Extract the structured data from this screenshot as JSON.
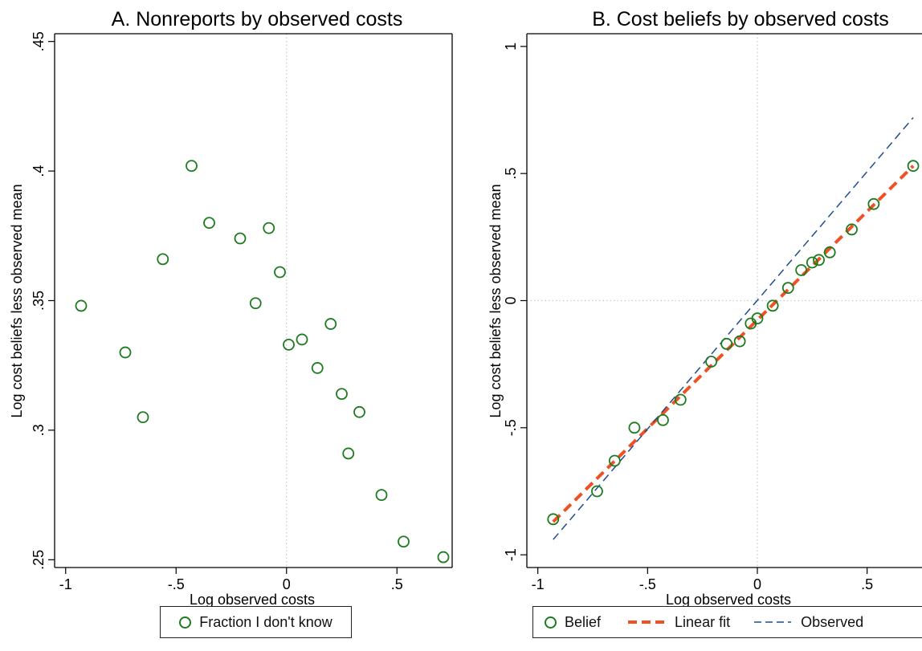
{
  "colors": {
    "marker": "#1e7a1e",
    "linear_fit": "#f05023",
    "observed": "#1f4e8c",
    "refline": "#c8c8c8"
  },
  "chart_data": [
    {
      "type": "scatter",
      "title": "A. Nonreports by observed costs",
      "xlabel": "Log observed costs",
      "ylabel": "Log cost beliefs less observed mean",
      "xlim": [
        -1.05,
        0.75
      ],
      "ylim": [
        0.247,
        0.453
      ],
      "xticks": [
        {
          "v": -1,
          "label": "-1"
        },
        {
          "v": -0.5,
          "label": "-.5"
        },
        {
          "v": 0,
          "label": "0"
        },
        {
          "v": 0.5,
          "label": ".5"
        }
      ],
      "yticks": [
        {
          "v": 0.25,
          "label": ".25"
        },
        {
          "v": 0.3,
          "label": ".3"
        },
        {
          "v": 0.35,
          "label": ".35"
        },
        {
          "v": 0.4,
          "label": ".4"
        },
        {
          "v": 0.45,
          "label": ".45"
        }
      ],
      "refline_x": 0,
      "legend": [
        "Fraction I don't know"
      ],
      "series": [
        {
          "name": "Fraction I don't know",
          "x": [
            -0.93,
            -0.73,
            -0.65,
            -0.56,
            -0.43,
            -0.35,
            -0.21,
            -0.08,
            -0.14,
            -0.03,
            0.01,
            0.07,
            0.14,
            0.2,
            0.25,
            0.28,
            0.33,
            0.43,
            0.53,
            0.71
          ],
          "y": [
            0.348,
            0.33,
            0.305,
            0.366,
            0.402,
            0.38,
            0.374,
            0.378,
            0.349,
            0.361,
            0.333,
            0.335,
            0.324,
            0.341,
            0.314,
            0.291,
            0.307,
            0.275,
            0.257,
            0.251
          ]
        }
      ]
    },
    {
      "type": "scatter",
      "title": "B. Cost beliefs by observed costs",
      "xlabel": "Log observed costs",
      "ylabel": "Log cost beliefs less observed mean",
      "xlim": [
        -1.05,
        0.75
      ],
      "ylim": [
        -1.05,
        1.05
      ],
      "xticks": [
        {
          "v": -1,
          "label": "-1"
        },
        {
          "v": -0.5,
          "label": "-.5"
        },
        {
          "v": 0,
          "label": "0"
        },
        {
          "v": 0.5,
          "label": ".5"
        }
      ],
      "yticks": [
        {
          "v": -1,
          "label": "-1"
        },
        {
          "v": -0.5,
          "label": "-.5"
        },
        {
          "v": 0,
          "label": "0"
        },
        {
          "v": 0.5,
          "label": ".5"
        },
        {
          "v": 1,
          "label": "1"
        }
      ],
      "refline_x": 0,
      "refline_y": 0,
      "legend": [
        "Belief",
        "Linear fit",
        "Observed"
      ],
      "series": [
        {
          "name": "Belief",
          "x": [
            -0.93,
            -0.73,
            -0.65,
            -0.56,
            -0.43,
            -0.35,
            -0.21,
            -0.14,
            -0.08,
            -0.03,
            0.0,
            0.07,
            0.14,
            0.2,
            0.25,
            0.28,
            0.33,
            0.43,
            0.53,
            0.71
          ],
          "y": [
            -0.86,
            -0.75,
            -0.63,
            -0.5,
            -0.47,
            -0.39,
            -0.24,
            -0.17,
            -0.16,
            -0.09,
            -0.07,
            -0.02,
            0.05,
            0.12,
            0.15,
            0.16,
            0.19,
            0.28,
            0.38,
            0.53
          ]
        },
        {
          "name": "Linear fit",
          "x": [
            -0.93,
            0.71
          ],
          "y": [
            -0.87,
            0.53
          ]
        },
        {
          "name": "Observed",
          "x": [
            -0.93,
            0.71
          ],
          "y": [
            -0.94,
            0.72
          ]
        }
      ]
    }
  ]
}
